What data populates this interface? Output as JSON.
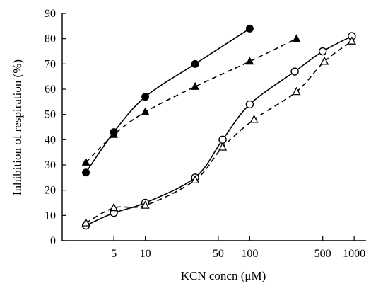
{
  "chart_data": {
    "type": "scatter",
    "title": "",
    "xlabel": "KCN concn (μM)",
    "ylabel": "Inhibition of respiration (%)",
    "xscale": "log",
    "xlim": [
      1.6,
      1300
    ],
    "ylim": [
      0,
      90
    ],
    "x_ticks": [
      5,
      10,
      50,
      100,
      500,
      1000
    ],
    "x_tick_labels": [
      "5",
      "10",
      "50",
      "100",
      "500",
      "1000"
    ],
    "y_ticks": [
      0,
      10,
      20,
      30,
      40,
      50,
      60,
      70,
      80,
      90
    ],
    "y_tick_labels": [
      "0",
      "10",
      "20",
      "30",
      "40",
      "50",
      "60",
      "70",
      "80",
      "90"
    ],
    "grid": false,
    "legend": false,
    "series": [
      {
        "marker": "filled-circle",
        "line_style": "solid",
        "x": [
          2.7,
          5,
          10,
          30,
          100
        ],
        "y": [
          27,
          43,
          57,
          70,
          84
        ]
      },
      {
        "marker": "filled-triangle",
        "line_style": "dashed",
        "x": [
          2.7,
          5,
          10,
          30,
          100,
          280
        ],
        "y": [
          31,
          42,
          51,
          61,
          71,
          80
        ]
      },
      {
        "marker": "open-circle",
        "line_style": "solid",
        "x": [
          2.7,
          5,
          10,
          30,
          55,
          100,
          270,
          500,
          950
        ],
        "y": [
          6,
          11,
          15,
          25,
          40,
          54,
          67,
          75,
          81
        ]
      },
      {
        "marker": "open-triangle",
        "line_style": "dashed",
        "x": [
          2.7,
          5,
          10,
          30,
          55,
          110,
          280,
          520,
          950
        ],
        "y": [
          7,
          13,
          14,
          24,
          37,
          48,
          59,
          71,
          79
        ]
      }
    ]
  }
}
